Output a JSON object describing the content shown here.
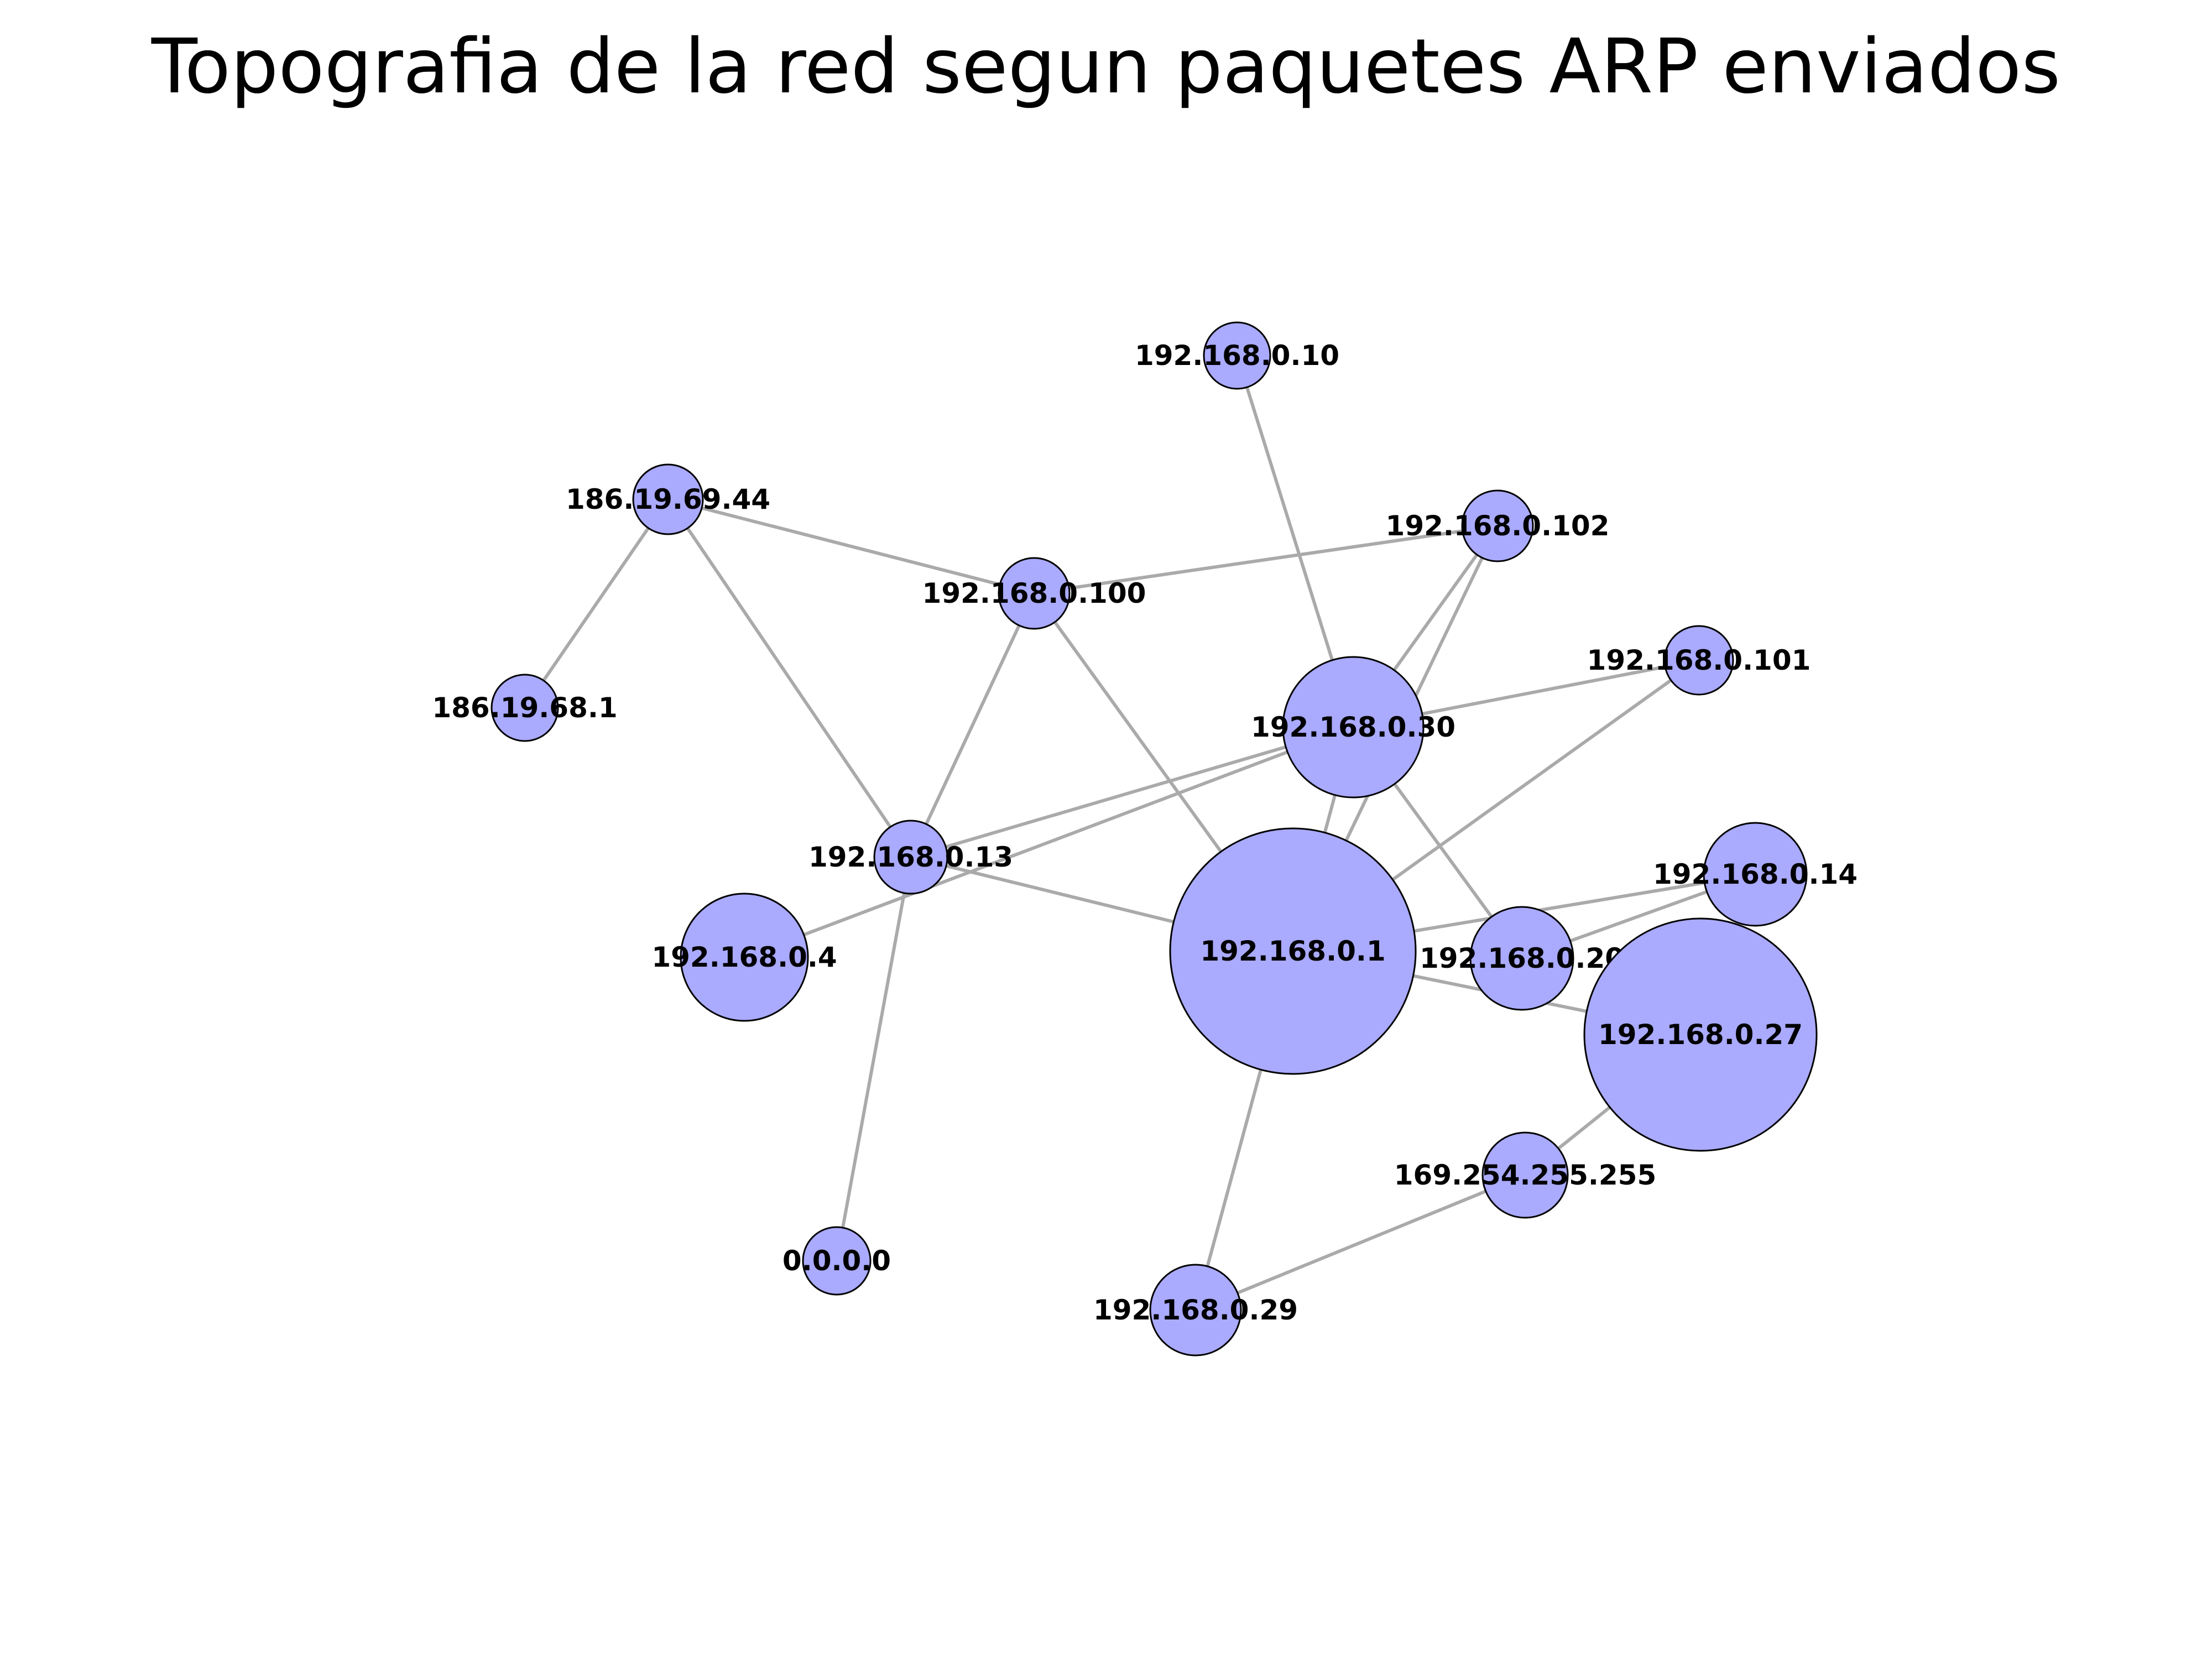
{
  "title": "Topografia de la red segun paquetes ARP enviados",
  "colors": {
    "node_fill": "#aaaaff",
    "node_stroke": "#000000",
    "edge": "#aaaaaa"
  },
  "nodes": [
    {
      "id": "n1",
      "label": "192.168.0.10"
    },
    {
      "id": "n2",
      "label": "186.19.69.44"
    },
    {
      "id": "n3",
      "label": "192.168.0.102"
    },
    {
      "id": "n4",
      "label": "192.168.0.100"
    },
    {
      "id": "n5",
      "label": "192.168.0.101"
    },
    {
      "id": "n6",
      "label": "186.19.68.1"
    },
    {
      "id": "n7",
      "label": "192.168.0.30"
    },
    {
      "id": "n8",
      "label": "192.168.0.13"
    },
    {
      "id": "n9",
      "label": "192.168.0.14"
    },
    {
      "id": "n10",
      "label": "192.168.0.4"
    },
    {
      "id": "n11",
      "label": "192.168.0.1"
    },
    {
      "id": "n12",
      "label": "192.168.0.20"
    },
    {
      "id": "n13",
      "label": "192.168.0.27"
    },
    {
      "id": "n14",
      "label": "169.254.255.255"
    },
    {
      "id": "n15",
      "label": "0.0.0.0"
    },
    {
      "id": "n16",
      "label": "192.168.0.29"
    }
  ],
  "edges": [
    [
      "n1",
      "n7"
    ],
    [
      "n2",
      "n6"
    ],
    [
      "n2",
      "n4"
    ],
    [
      "n2",
      "n8"
    ],
    [
      "n4",
      "n3"
    ],
    [
      "n4",
      "n8"
    ],
    [
      "n4",
      "n11"
    ],
    [
      "n3",
      "n7"
    ],
    [
      "n3",
      "n11"
    ],
    [
      "n5",
      "n7"
    ],
    [
      "n5",
      "n11"
    ],
    [
      "n7",
      "n8"
    ],
    [
      "n7",
      "n10"
    ],
    [
      "n7",
      "n11"
    ],
    [
      "n7",
      "n12"
    ],
    [
      "n8",
      "n11"
    ],
    [
      "n8",
      "n15"
    ],
    [
      "n11",
      "n9"
    ],
    [
      "n11",
      "n13"
    ],
    [
      "n11",
      "n16"
    ],
    [
      "n12",
      "n9"
    ],
    [
      "n13",
      "n14"
    ],
    [
      "n14",
      "n16"
    ]
  ]
}
